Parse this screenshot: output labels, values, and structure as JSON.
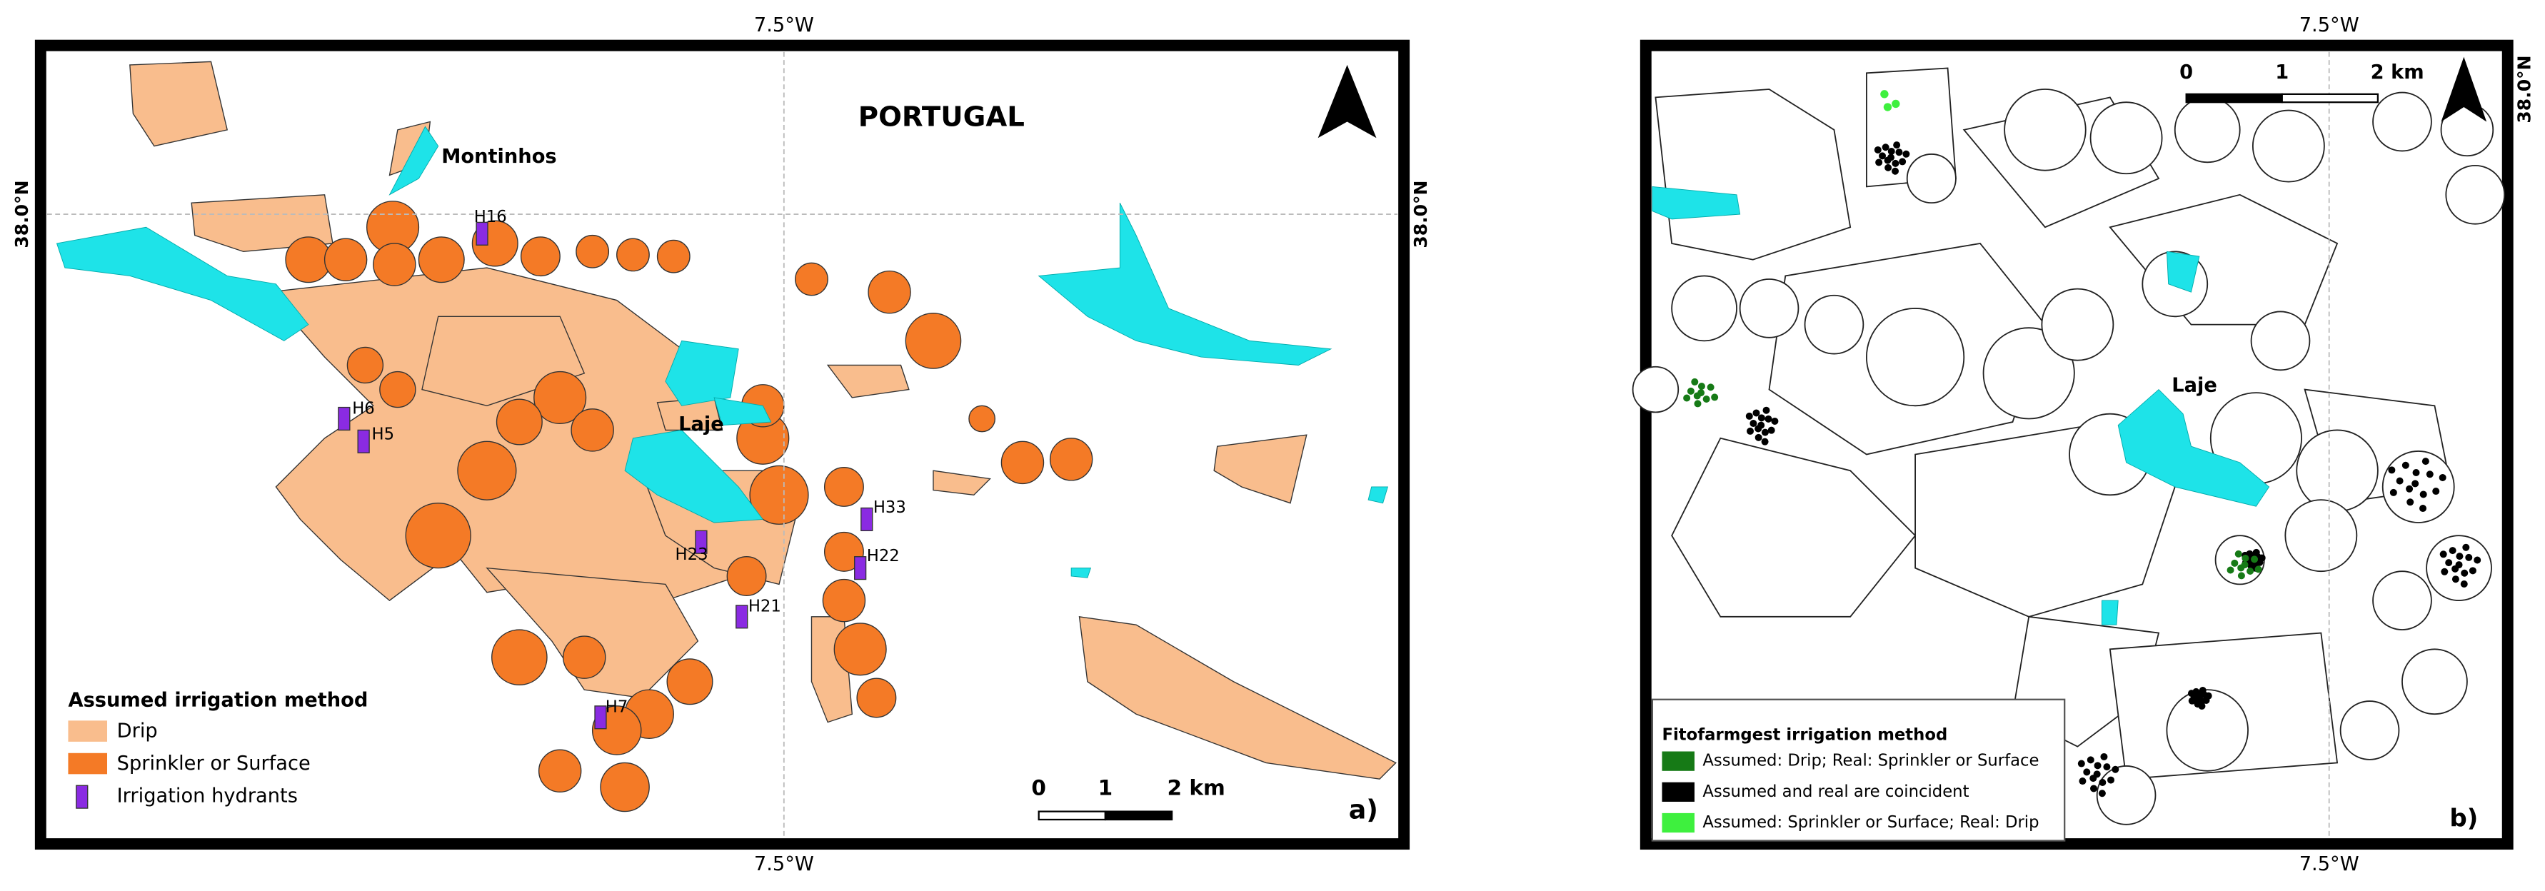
{
  "panel_a": {
    "grid_labels": {
      "top": "7.5°W",
      "bottom": "7.5°W",
      "left": "38.0°N",
      "right": "38.0°N"
    },
    "country": "PORTUGAL",
    "places": [
      "Montinhos",
      "Laje"
    ],
    "hydrants": [
      "H16",
      "H6",
      "H5",
      "H33",
      "H23",
      "H22",
      "H21",
      "H7"
    ],
    "legend": {
      "title": "Assumed irrigation method",
      "items": [
        "Drip",
        "Sprinkler or Surface",
        "Irrigation hydrants"
      ]
    },
    "scale": [
      "0",
      "1",
      "2 km"
    ],
    "tag": "a)"
  },
  "panel_b": {
    "grid_labels": {
      "top": "7.5°W",
      "bottom": "7.5°W",
      "right": "38.0°N"
    },
    "places": [
      "Laje"
    ],
    "legend": {
      "title": "Fitofarmgest irrigation method",
      "items": [
        "Assumed: Drip; Real: Sprinkler or Surface",
        "Assumed and real are coincident",
        "Assumed: Sprinkler or Surface; Real: Drip"
      ]
    },
    "scale": [
      "0",
      "1",
      "2 km"
    ],
    "tag": "b)"
  }
}
